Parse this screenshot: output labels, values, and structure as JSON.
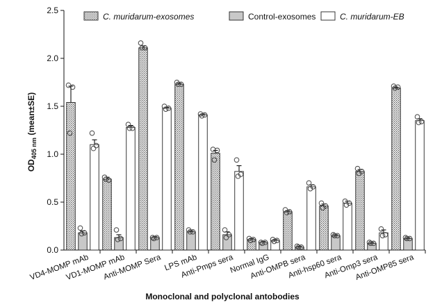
{
  "chart_data": {
    "type": "bar",
    "title": "",
    "xlabel": "Monoclonal and polyclonal antobodies",
    "ylabel": "OD",
    "ylabel_sub": "405 nm",
    "ylabel_suffix": " (mean±SE)",
    "ylim": [
      0,
      2.5
    ],
    "yticks": [
      "0.0",
      "0.5",
      "1.0",
      "1.5",
      "2.0",
      "2.5"
    ],
    "legend_position": "top",
    "grid": false,
    "categories": [
      "VD4-MOMP mAb",
      "VD1-MOMP mAb",
      "Anti-MOMP Sera",
      "LPS mAb",
      "Anti-Pmps sera",
      "Normal IgG",
      "Anti-OMPB sera",
      "Anti-hsp60 sera",
      "Anti-Omp3 sera",
      "Anti-OMP85 sera"
    ],
    "series": [
      {
        "name": "C. muridarum-exosomes",
        "pattern": "dotted",
        "values": [
          1.54,
          0.74,
          2.11,
          1.73,
          1.01,
          0.11,
          0.4,
          0.46,
          0.82,
          1.69
        ],
        "errors": [
          0.17,
          0.02,
          0.02,
          0.01,
          0.03,
          0.01,
          0.01,
          0.02,
          0.02,
          0.01
        ],
        "points": [
          [
            1.72,
            1.7,
            1.22
          ],
          [
            0.76,
            0.73,
            0.74
          ],
          [
            2.16,
            2.11,
            2.11
          ],
          [
            1.75,
            1.73,
            1.73
          ],
          [
            1.05,
            1.04,
            0.94
          ],
          [
            0.12,
            0.11,
            0.1
          ],
          [
            0.42,
            0.4,
            0.39
          ],
          [
            0.49,
            0.46,
            0.44
          ],
          [
            0.85,
            0.82,
            0.8
          ],
          [
            1.71,
            1.7,
            1.69
          ]
        ]
      },
      {
        "name": "Control-exosomes",
        "pattern": "gray",
        "values": [
          0.18,
          0.13,
          0.13,
          0.19,
          0.16,
          0.08,
          0.03,
          0.15,
          0.07,
          0.12
        ],
        "errors": [
          0.02,
          0.03,
          0.01,
          0.01,
          0.03,
          0.01,
          0.01,
          0.01,
          0.01,
          0.01
        ],
        "points": [
          [
            0.23,
            0.18,
            0.17
          ],
          [
            0.21,
            0.12,
            0.11
          ],
          [
            0.13,
            0.13,
            0.12
          ],
          [
            0.21,
            0.19,
            0.19
          ],
          [
            0.21,
            0.16,
            0.13
          ],
          [
            0.08,
            0.08,
            0.07
          ],
          [
            0.04,
            0.03,
            0.03
          ],
          [
            0.16,
            0.15,
            0.15
          ],
          [
            0.08,
            0.07,
            0.07
          ],
          [
            0.13,
            0.12,
            0.12
          ]
        ]
      },
      {
        "name": "C. muridarum-EB",
        "pattern": "white",
        "values": [
          1.1,
          1.28,
          1.48,
          1.41,
          0.82,
          0.1,
          0.66,
          0.49,
          0.18,
          1.35
        ],
        "errors": [
          0.05,
          0.02,
          0.01,
          0.01,
          0.06,
          0.01,
          0.02,
          0.02,
          0.03,
          0.02
        ],
        "points": [
          [
            1.22,
            1.09,
            1.06
          ],
          [
            1.31,
            1.27,
            1.27
          ],
          [
            1.5,
            1.48,
            1.47
          ],
          [
            1.42,
            1.41,
            1.4
          ],
          [
            0.94,
            0.79,
            0.77
          ],
          [
            0.11,
            0.1,
            0.09
          ],
          [
            0.7,
            0.66,
            0.64
          ],
          [
            0.51,
            0.49,
            0.47
          ],
          [
            0.22,
            0.16,
            0.15
          ],
          [
            1.39,
            1.34,
            1.33
          ]
        ]
      }
    ]
  }
}
